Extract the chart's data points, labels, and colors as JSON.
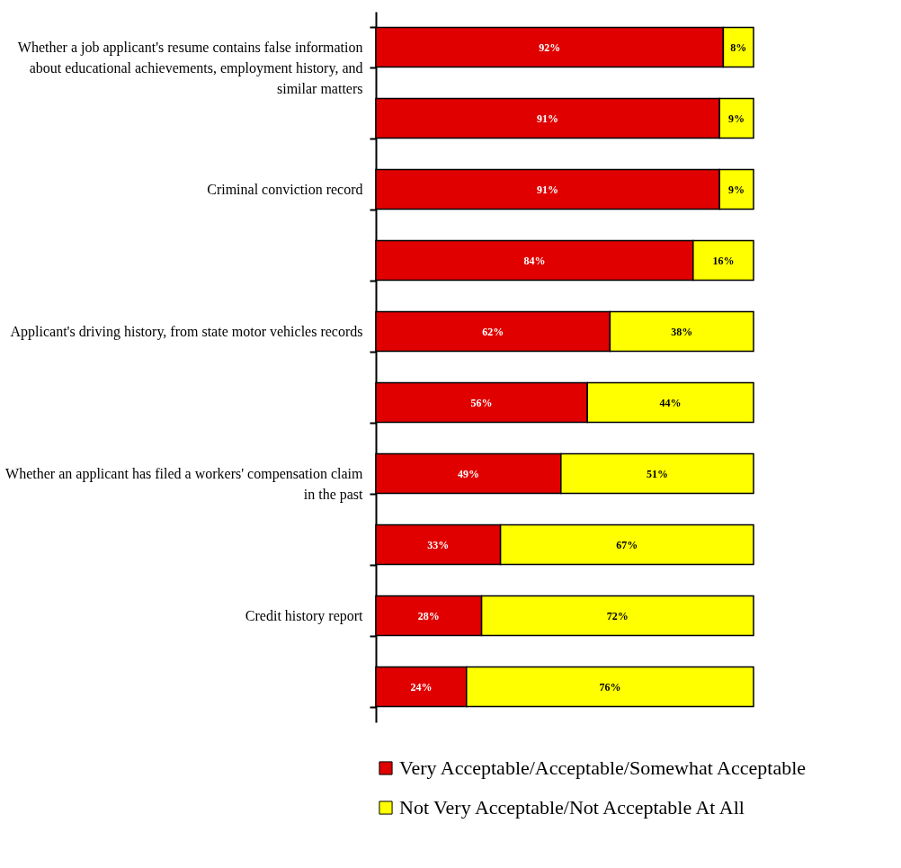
{
  "chart_data": {
    "type": "bar",
    "orientation": "horizontal",
    "stacked": true,
    "legend": "bottom",
    "grid": false,
    "categories": [
      "Whether a job applicant's resume contains false information about educational achievements, employment history, and similar matters",
      null,
      "Criminal conviction record",
      null,
      "Applicant's driving history, from state motor vehicles records",
      null,
      "Whether an applicant has filed a workers' compensation claim in the past",
      null,
      "Credit history report",
      null
    ],
    "series": [
      {
        "name": "Very Acceptable/Acceptable/Somewhat Acceptable",
        "color": "#e00000",
        "values": [
          92,
          91,
          91,
          84,
          62,
          56,
          49,
          33,
          28,
          24
        ],
        "value_labels": [
          "92%",
          "91%",
          "91%",
          "84%",
          "62%",
          "56%",
          "49%",
          "33%",
          "28%",
          "24%"
        ]
      },
      {
        "name": "Not Very Acceptable/Not Acceptable At All",
        "color": "#ffff00",
        "values": [
          8,
          9,
          9,
          16,
          38,
          44,
          51,
          67,
          72,
          76
        ],
        "value_labels": [
          "8%",
          "9%",
          "9%",
          "16%",
          "38%",
          "44%",
          "51%",
          "67%",
          "72%",
          "76%"
        ]
      }
    ]
  }
}
